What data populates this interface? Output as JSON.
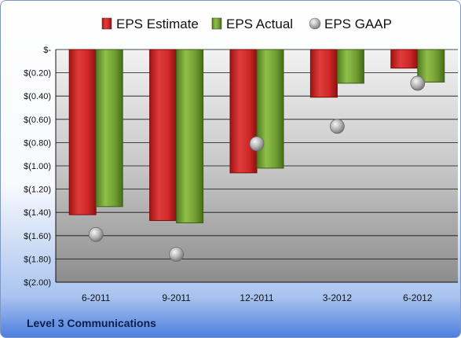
{
  "chart_data": {
    "type": "bar",
    "categories": [
      "6-2011",
      "9-2011",
      "12-2011",
      "3-2012",
      "6-2012"
    ],
    "series": [
      {
        "name": "EPS Estimate",
        "kind": "bar",
        "color": "#d42a2a",
        "values": [
          -1.42,
          -1.47,
          -1.06,
          -0.41,
          -0.16
        ]
      },
      {
        "name": "EPS Actual",
        "kind": "bar",
        "color": "#6f9c2f",
        "values": [
          -1.35,
          -1.49,
          -1.02,
          -0.29,
          -0.28
        ]
      },
      {
        "name": "EPS GAAP",
        "kind": "point",
        "color": "#9a9a9a",
        "values": [
          -1.59,
          -1.76,
          -0.81,
          -0.66,
          -0.29
        ]
      }
    ],
    "ylim": [
      -2.0,
      0
    ],
    "y_ticks": [
      "$-",
      "$(0.20)",
      "$(0.40)",
      "$(0.60)",
      "$(0.80)",
      "$(1.00)",
      "$(1.20)",
      "$(1.40)",
      "$(1.60)",
      "$(1.80)",
      "$(2.00)"
    ],
    "legend_position": "top",
    "grid": true
  },
  "footer": {
    "company": "Level 3 Communications"
  }
}
